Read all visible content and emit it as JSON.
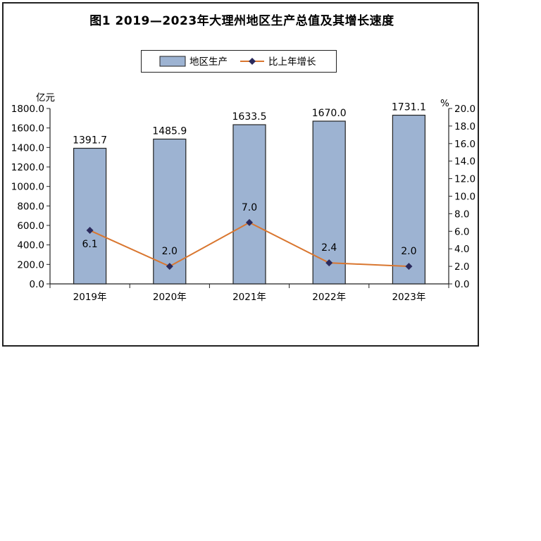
{
  "chart_data": {
    "type": "bar+line",
    "title": "图1  2019—2023年大理州地区生产总值及其增长速度",
    "categories": [
      "2019年",
      "2020年",
      "2021年",
      "2022年",
      "2023年"
    ],
    "series": [
      {
        "name": "地区生产",
        "type": "bar",
        "axis": "left",
        "values": [
          1391.7,
          1485.9,
          1633.5,
          1670.0,
          1731.1
        ],
        "labels": [
          "1391.7",
          "1485.9",
          "1633.5",
          "1670.0",
          "1731.1"
        ],
        "color": "#9db3d2"
      },
      {
        "name": "比上年增长",
        "type": "line",
        "axis": "right",
        "values": [
          6.1,
          2.0,
          7.0,
          2.4,
          2.0
        ],
        "labels": [
          "6.1",
          "2.0",
          "7.0",
          "2.4",
          "2.0"
        ],
        "line_color": "#d9762f",
        "marker_color": "#2b2a5c"
      }
    ],
    "y_left": {
      "unit": "亿元",
      "range": [
        0,
        1800
      ],
      "ticks": [
        "0.0",
        "200.0",
        "400.0",
        "600.0",
        "800.0",
        "1000.0",
        "1200.0",
        "1400.0",
        "1600.0",
        "1800.0"
      ]
    },
    "y_right": {
      "unit": "%",
      "range": [
        0,
        20
      ],
      "ticks": [
        "0.0",
        "2.0",
        "4.0",
        "6.0",
        "8.0",
        "10.0",
        "12.0",
        "14.0",
        "16.0",
        "18.0",
        "20.0"
      ]
    },
    "legend_position": "top-center",
    "grid": false
  }
}
